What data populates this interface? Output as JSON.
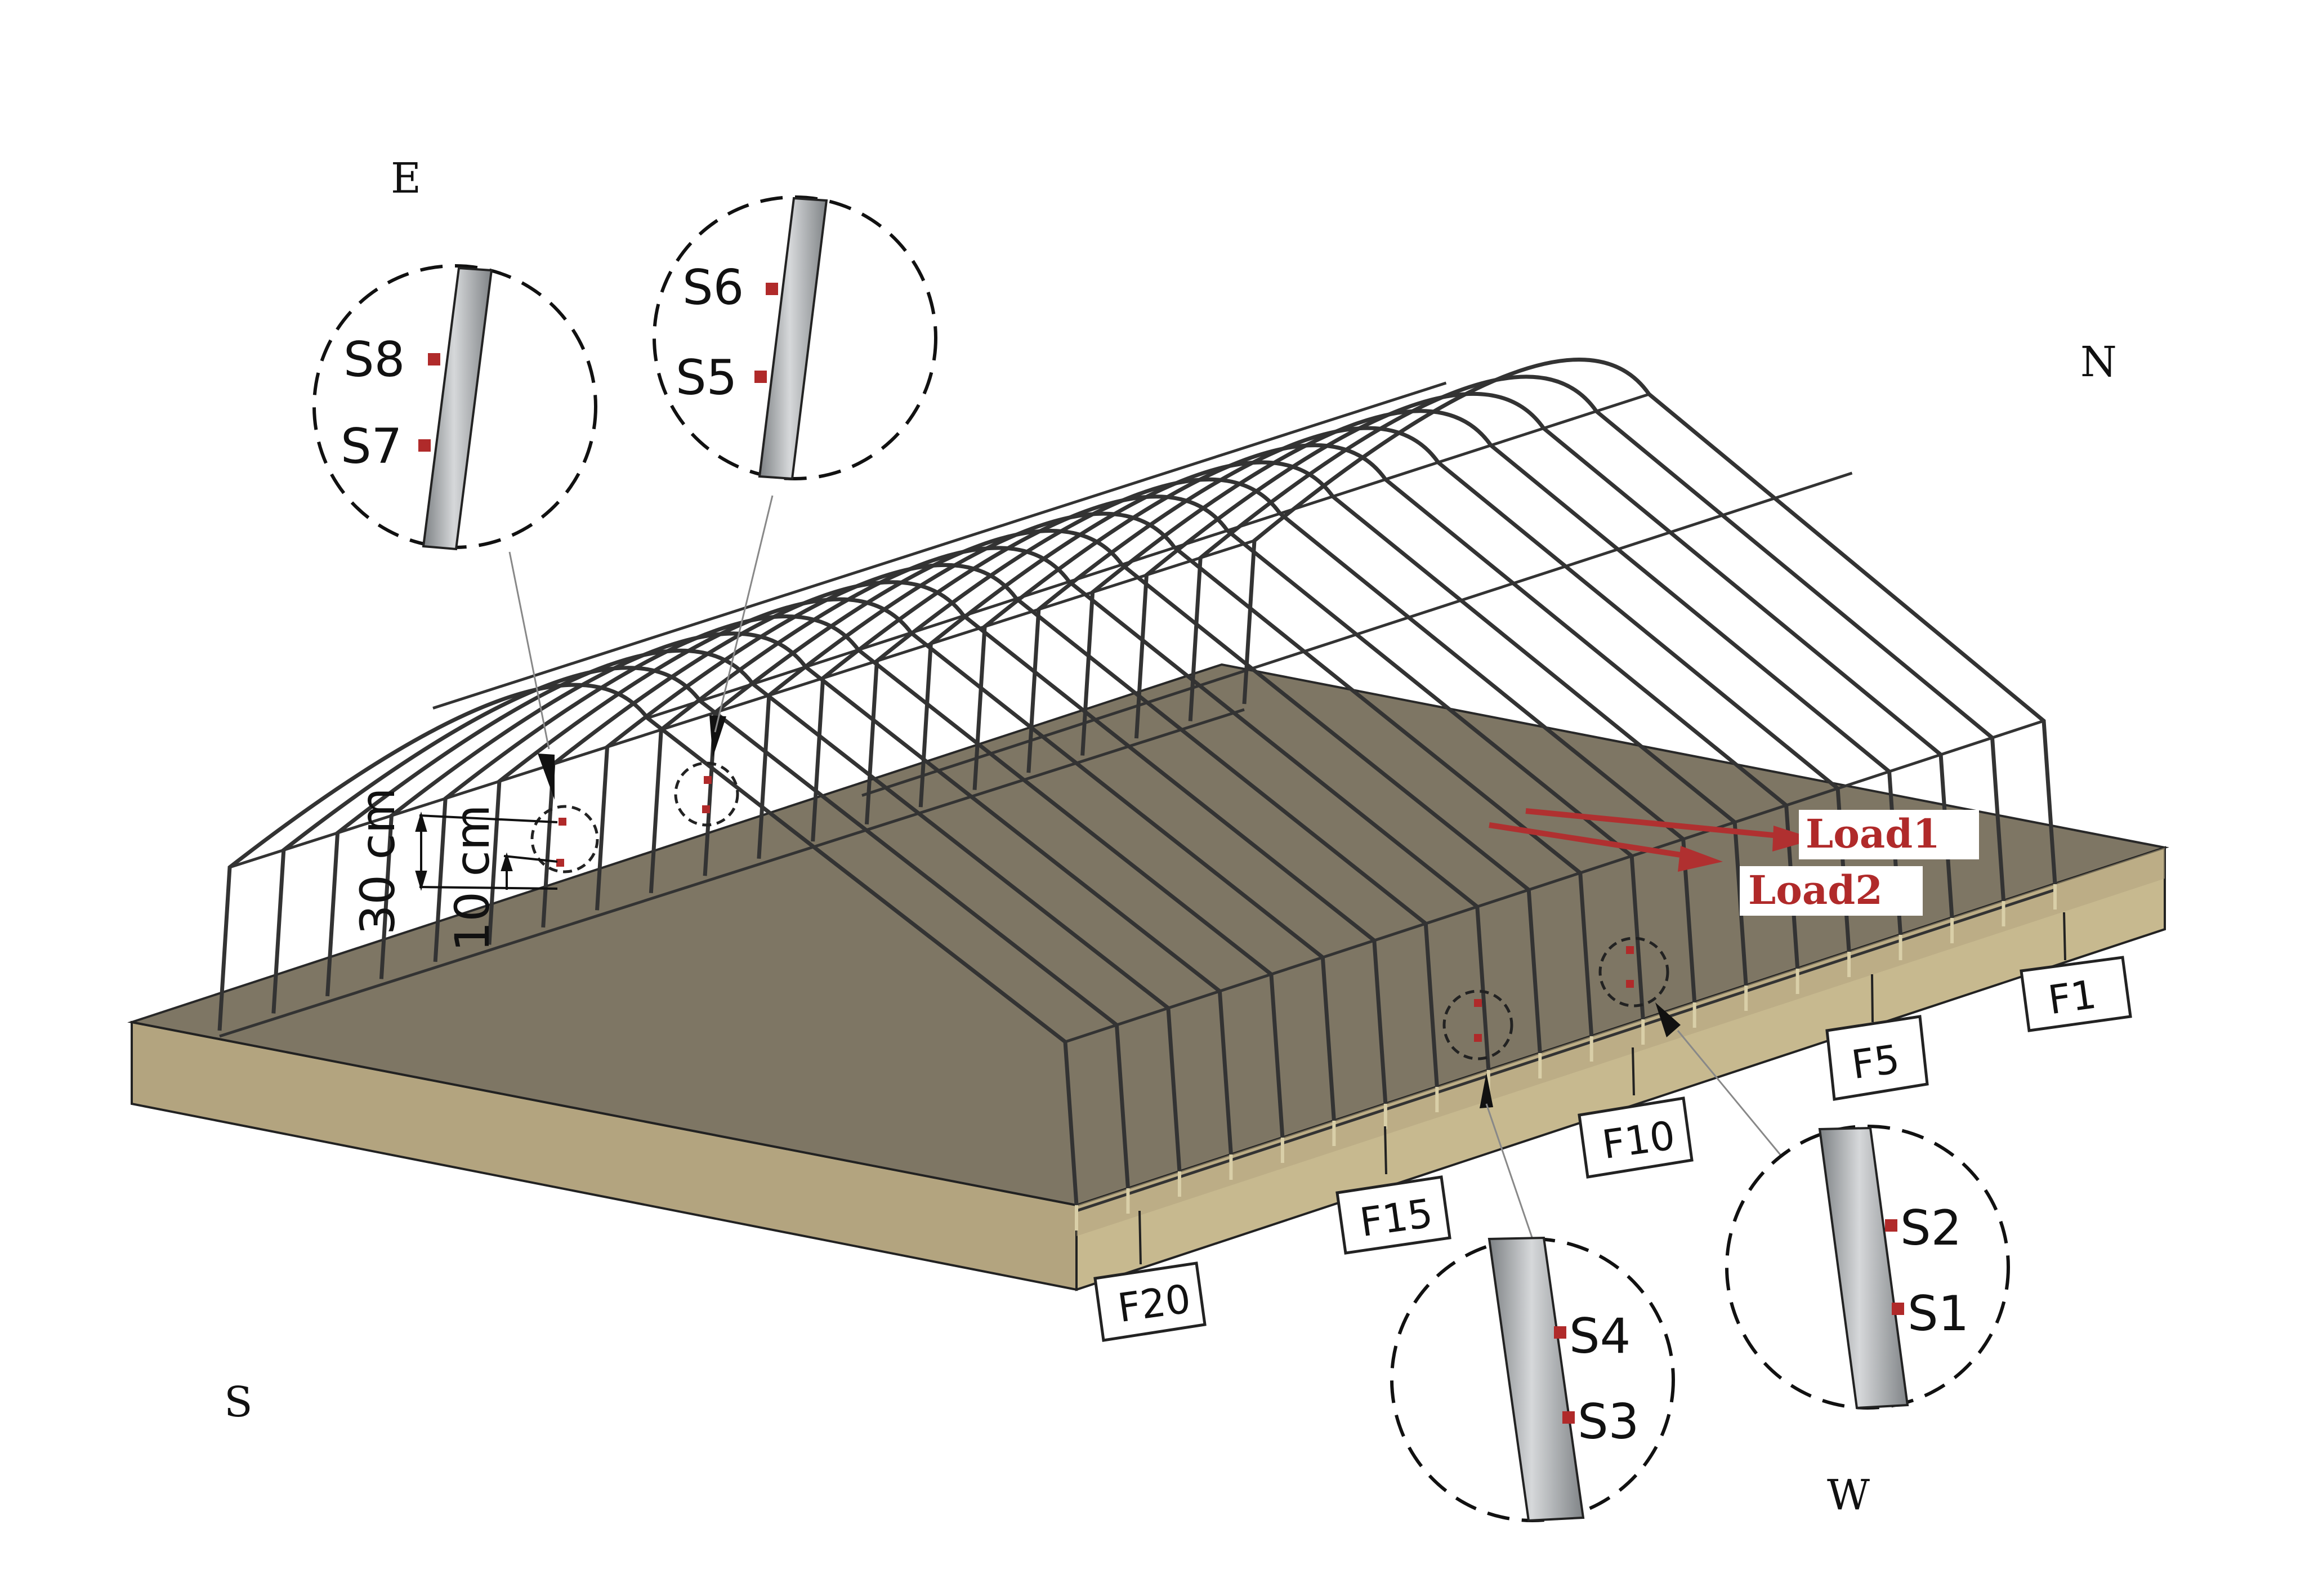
{
  "compass": {
    "north": "N",
    "south": "S",
    "east": "E",
    "west": "W"
  },
  "foundation_labels": [
    "F1",
    "F5",
    "F10",
    "F15",
    "F20"
  ],
  "sensors": {
    "detail_east_a": [
      "S8",
      "S7"
    ],
    "detail_east_b": [
      "S6",
      "S5"
    ],
    "detail_west_a": [
      "S4",
      "S3"
    ],
    "detail_west_b": [
      "S2",
      "S1"
    ]
  },
  "dimensions": {
    "upper": "30 cm",
    "lower": "10 cm"
  },
  "loads": {
    "load1": "Load1",
    "load2": "Load2"
  },
  "colors": {
    "soil_top": "#7a7260",
    "soil_side": "#b3a47f",
    "frame": "#333333",
    "sensor": "#b02a2a",
    "load_arrow": "#b03030",
    "pipe": "#a3a6a8"
  }
}
